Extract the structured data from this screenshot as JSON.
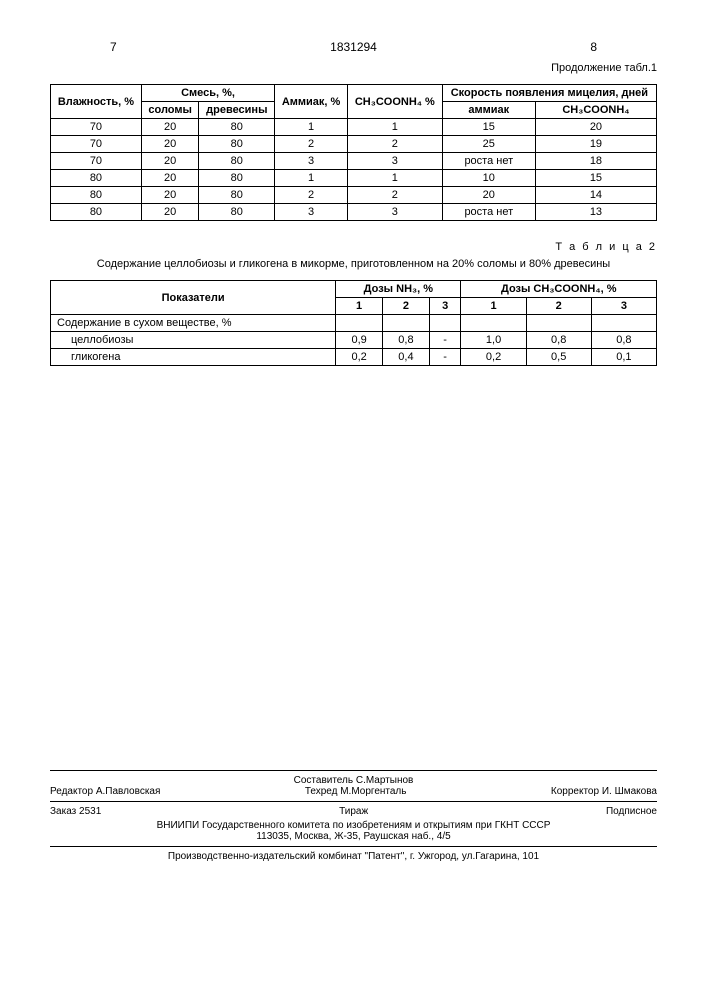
{
  "header": {
    "page_left": "7",
    "doc_number": "1831294",
    "page_right": "8",
    "continuation": "Продолжение табл.1"
  },
  "table1": {
    "headers": {
      "humidity": "Влажность, %",
      "mixture": "Смесь, %,",
      "straw": "соломы",
      "wood": "древесины",
      "ammonia": "Аммиак, %",
      "ch3coonh4": "CH₃COONH₄ %",
      "rate": "Скорость появления мицелия, дней",
      "rate_ammonia": "аммиак",
      "rate_ch3": "CH₃COONH₄"
    },
    "rows": [
      {
        "h": "70",
        "s": "20",
        "w": "80",
        "a": "1",
        "c": "1",
        "ra": "15",
        "rc": "20"
      },
      {
        "h": "70",
        "s": "20",
        "w": "80",
        "a": "2",
        "c": "2",
        "ra": "25",
        "rc": "19"
      },
      {
        "h": "70",
        "s": "20",
        "w": "80",
        "a": "3",
        "c": "3",
        "ra": "роста нет",
        "rc": "18"
      },
      {
        "h": "80",
        "s": "20",
        "w": "80",
        "a": "1",
        "c": "1",
        "ra": "10",
        "rc": "15"
      },
      {
        "h": "80",
        "s": "20",
        "w": "80",
        "a": "2",
        "c": "2",
        "ra": "20",
        "rc": "14"
      },
      {
        "h": "80",
        "s": "20",
        "w": "80",
        "a": "3",
        "c": "3",
        "ra": "роста нет",
        "rc": "13"
      }
    ]
  },
  "table2": {
    "title": "Т а б л и ц а 2",
    "caption": "Содержание целлобиозы и гликогена в микорме, приготовленном на 20% соломы и 80% древесины",
    "headers": {
      "indicators": "Показатели",
      "nh3": "Дозы NH₃, %",
      "ch3": "Дозы CH₃COONH₄, %",
      "c1": "1",
      "c2": "2",
      "c3": "3"
    },
    "rows": {
      "header_row": "Содержание в сухом веществе, %",
      "cellobiose": "целлобиозы",
      "glycogen": "гликогена",
      "cb": [
        "0,9",
        "0,8",
        "-",
        "1,0",
        "0,8",
        "0,8"
      ],
      "gl": [
        "0,2",
        "0,4",
        "-",
        "0,2",
        "0,5",
        "0,1"
      ]
    }
  },
  "footer": {
    "editor": "Редактор А.Павловская",
    "compiler": "Составитель С.Мартынов",
    "techred": "Техред М.Моргенталь",
    "corrector": "Корректор И. Шмакова",
    "order": "Заказ 2531",
    "circulation": "Тираж",
    "subscription": "Подписное",
    "org": "ВНИИПИ Государственного комитета по изобретениям и открытиям при ГКНТ СССР",
    "address": "113035, Москва, Ж-35, Раушская наб., 4/5",
    "publisher": "Производственно-издательский комбинат \"Патент\", г. Ужгород, ул.Гагарина, 101"
  }
}
